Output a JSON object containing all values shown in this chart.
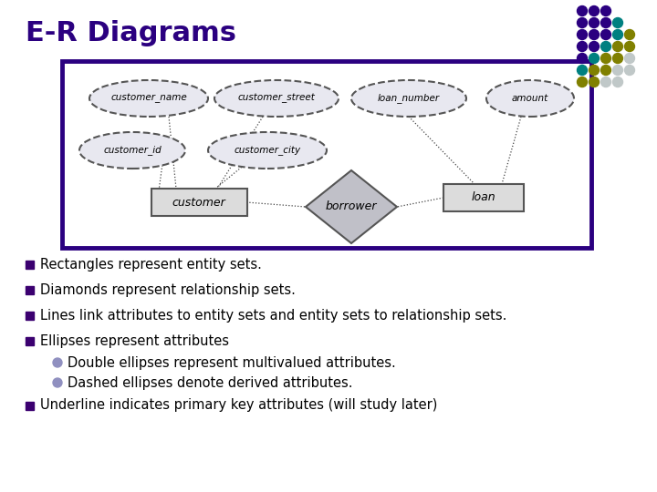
{
  "title": "E-R Diagrams",
  "title_color": "#2B0080",
  "title_fontsize": 22,
  "bg_color": "#FFFFFF",
  "bullet_color": "#3B0070",
  "bullet_items": [
    "Rectangles represent entity sets.",
    "Diamonds represent relationship sets.",
    "Lines link attributes to entity sets and entity sets to relationship sets.",
    "Ellipses represent attributes"
  ],
  "sub_bullets": [
    "Double ellipses represent multivalued attributes.",
    "Dashed ellipses denote derived attributes."
  ],
  "last_bullet": "Underline indicates primary key attributes (will study later)",
  "diagram_border_color": "#2B0080",
  "diagram_fill": "#FFFFFF",
  "entity_fill": "#DCDCDC",
  "entity_border": "#555555",
  "diamond_fill": "#C0C0C8",
  "ellipse_fill": "#E8E8F0",
  "ellipse_border": "#555555",
  "line_color": "#444444",
  "dot_grid": [
    [
      "#2B0080",
      "#2B0080",
      "#2B0080"
    ],
    [
      "#2B0080",
      "#2B0080",
      "#2B0080",
      "#008080"
    ],
    [
      "#2B0080",
      "#2B0080",
      "#2B0080",
      "#008080",
      "#808000"
    ],
    [
      "#2B0080",
      "#2B0080",
      "#008080",
      "#808000",
      "#808000"
    ],
    [
      "#2B0080",
      "#008080",
      "#808000",
      "#808000",
      "#C0C0C0"
    ],
    [
      "#008080",
      "#808000",
      "#808000",
      "#C0C0C0",
      "#C0C0C0"
    ],
    [
      "#808000",
      "#808000",
      "#C0C0C0",
      "#C0C0C0"
    ]
  ]
}
